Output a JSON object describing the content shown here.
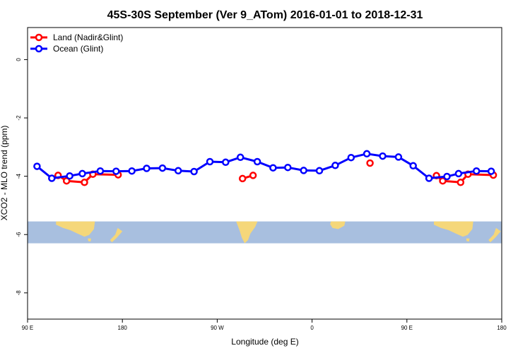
{
  "chart_data": {
    "type": "line",
    "title": "45S-30S September (Ver 9_ATom)   2016-01-01 to 2018-12-31",
    "xlabel": "Longitude (deg E)",
    "ylabel": "XCO2 - MLO trend (ppm)",
    "xlim": [
      90,
      540
    ],
    "ylim": [
      -8.9,
      1.1
    ],
    "x_ticks": [
      {
        "value": 90,
        "label": "90 E"
      },
      {
        "value": 180,
        "label": "180"
      },
      {
        "value": 270,
        "label": "90 W"
      },
      {
        "value": 360,
        "label": "0"
      },
      {
        "value": 450,
        "label": "90 E"
      },
      {
        "value": 540,
        "label": "180"
      }
    ],
    "y_ticks": [
      0,
      -2,
      -4,
      -6,
      -8
    ],
    "legend_position": "top-left",
    "grid": false,
    "map_strip": {
      "y_top": -5.55,
      "y_bottom": -6.3,
      "ocean_color": "#a8bfdf",
      "land_color": "#f5d77a"
    },
    "series": [
      {
        "name": "Land (Nadir&Glint)",
        "color": "#ff0000",
        "segments": [
          [
            [
              119,
              -3.97
            ],
            [
              127,
              -4.16
            ],
            [
              144,
              -4.21
            ],
            [
              152,
              -3.93
            ],
            [
              176,
              -3.95
            ]
          ],
          [
            [
              294,
              -4.08
            ],
            [
              304,
              -3.97
            ]
          ],
          [
            [
              415,
              -3.55
            ]
          ],
          [
            [
              478,
              -3.98
            ],
            [
              484,
              -4.16
            ],
            [
              501,
              -4.21
            ],
            [
              508,
              -3.93
            ],
            [
              532,
              -3.96
            ]
          ]
        ]
      },
      {
        "name": "Ocean (Glint)",
        "color": "#0000ff",
        "segments": [
          [
            [
              99,
              -3.66
            ],
            [
              113,
              -4.07
            ],
            [
              130,
              -3.99
            ],
            [
              142,
              -3.91
            ],
            [
              159,
              -3.82
            ],
            [
              174,
              -3.83
            ],
            [
              189,
              -3.82
            ],
            [
              203,
              -3.73
            ],
            [
              218,
              -3.72
            ],
            [
              233,
              -3.81
            ],
            [
              248,
              -3.84
            ],
            [
              263,
              -3.5
            ],
            [
              278,
              -3.52
            ],
            [
              292,
              -3.35
            ],
            [
              308,
              -3.5
            ],
            [
              323,
              -3.71
            ],
            [
              337,
              -3.7
            ],
            [
              352,
              -3.8
            ],
            [
              367,
              -3.81
            ],
            [
              382,
              -3.63
            ],
            [
              397,
              -3.36
            ],
            [
              412,
              -3.23
            ],
            [
              427,
              -3.31
            ],
            [
              442,
              -3.34
            ],
            [
              456,
              -3.64
            ],
            [
              471,
              -4.07
            ],
            [
              488,
              -4.01
            ],
            [
              499,
              -3.91
            ],
            [
              516,
              -3.82
            ],
            [
              530,
              -3.83
            ]
          ]
        ]
      }
    ]
  }
}
